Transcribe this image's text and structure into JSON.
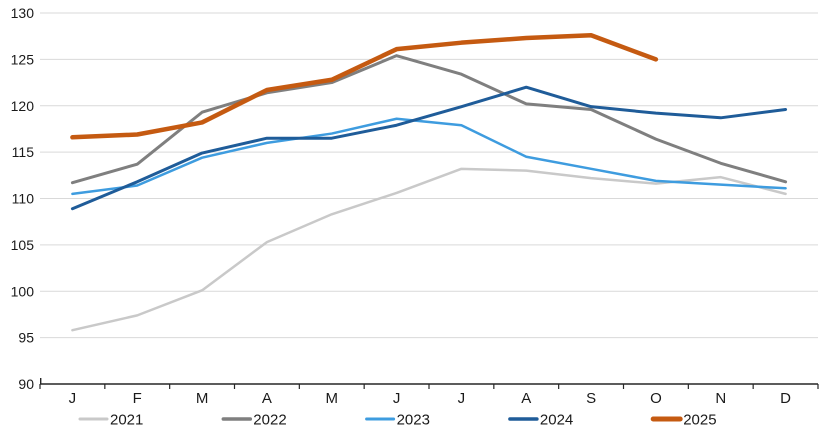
{
  "chart_data": {
    "type": "line",
    "title": "",
    "xlabel": "",
    "ylabel": "",
    "x_labels": [
      "J",
      "F",
      "M",
      "A",
      "M",
      "J",
      "J",
      "A",
      "S",
      "O",
      "N",
      "D"
    ],
    "y_axis": {
      "min": 90,
      "max": 130,
      "step": 5,
      "ticks": [
        90,
        95,
        100,
        105,
        110,
        115,
        120,
        125,
        130
      ]
    },
    "grid": "horizontal",
    "legend_position": "bottom",
    "colors": {
      "grid": "#D9D9D9",
      "axis": "#262626",
      "text": "#1a1a1a",
      "background": "#FFFFFF"
    },
    "series": [
      {
        "name": "2021",
        "color": "#C9C9C9",
        "width": 2.5,
        "values": [
          95.8,
          97.4,
          100.1,
          105.3,
          108.3,
          110.6,
          113.2,
          113.0,
          112.2,
          111.6,
          112.3,
          110.5
        ]
      },
      {
        "name": "2022",
        "color": "#7F7F7F",
        "width": 3,
        "values": [
          111.7,
          113.7,
          119.3,
          121.4,
          122.5,
          125.4,
          123.4,
          120.2,
          119.6,
          116.4,
          113.8,
          111.8
        ]
      },
      {
        "name": "2023",
        "color": "#3E9CDF",
        "width": 2.5,
        "values": [
          110.5,
          111.4,
          114.4,
          116.0,
          117.0,
          118.6,
          117.9,
          114.5,
          113.2,
          111.9,
          111.5,
          111.1
        ]
      },
      {
        "name": "2024",
        "color": "#1F5C99",
        "width": 3,
        "values": [
          108.9,
          111.8,
          114.9,
          116.5,
          116.5,
          117.9,
          119.9,
          122.0,
          119.9,
          119.2,
          118.7,
          119.6
        ]
      },
      {
        "name": "2025",
        "color": "#C55A11",
        "width": 4.5,
        "values": [
          116.6,
          116.9,
          118.2,
          121.7,
          122.8,
          126.1,
          126.8,
          127.3,
          127.6,
          125.0,
          null,
          null
        ]
      }
    ]
  }
}
